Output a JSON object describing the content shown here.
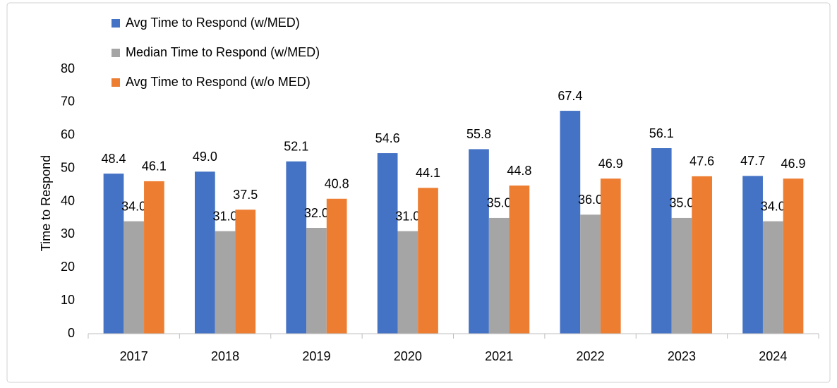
{
  "chart_data": {
    "type": "bar",
    "y_label": "Time to Respond",
    "categories": [
      "2017",
      "2018",
      "2019",
      "2020",
      "2021",
      "2022",
      "2023",
      "2024"
    ],
    "series": [
      {
        "name": "Avg Time to Respond (w/MED)",
        "color": "#4472c4",
        "values": [
          48.4,
          49.0,
          52.1,
          54.6,
          55.8,
          67.4,
          56.1,
          47.7
        ],
        "value_labels": [
          "48.4",
          "49.0",
          "52.1",
          "54.6",
          "55.8",
          "67.4",
          "56.1",
          "47.7"
        ]
      },
      {
        "name": "Median Time to Respond (w/MED)",
        "color": "#a5a5a5",
        "values": [
          34.0,
          31.0,
          32.0,
          31.0,
          35.0,
          36.0,
          35.0,
          34.0
        ],
        "value_labels": [
          "34.0",
          "31.0",
          "32.0",
          "31.0",
          "35.0",
          "36.0",
          "35.0",
          "34.0"
        ]
      },
      {
        "name": "Avg Time to Respond (w/o MED)",
        "color": "#ed7d31",
        "values": [
          46.1,
          37.5,
          40.8,
          44.1,
          44.8,
          46.9,
          47.6,
          46.9
        ],
        "value_labels": [
          "46.1",
          "37.5",
          "40.8",
          "44.1",
          "44.8",
          "46.9",
          "47.6",
          "46.9"
        ]
      }
    ],
    "ylim": [
      0,
      80
    ],
    "yticks": [
      0,
      10,
      20,
      30,
      40,
      50,
      60,
      70,
      80
    ],
    "grid": false,
    "legend": "top-left"
  }
}
